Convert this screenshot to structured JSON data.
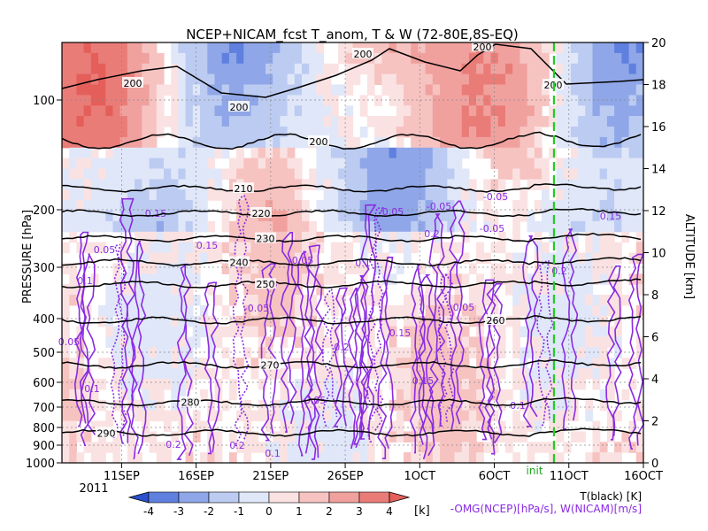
{
  "chart_data": {
    "type": "heatmap",
    "title": "NCEP+NICAM_fcst T_anom, T & W  (72-80E,8S-EQ)",
    "y_left_label": "PRESSURE [hPa]",
    "y_right_label": "ALTITUDE [km]",
    "y_left_ticks": [
      "100",
      "200",
      "300",
      "400",
      "500",
      "600",
      "700",
      "800",
      "900",
      "1000"
    ],
    "y_left_tick_values": [
      100,
      200,
      300,
      400,
      500,
      600,
      700,
      800,
      900,
      1000
    ],
    "y_right_ticks": [
      "0",
      "2",
      "4",
      "6",
      "8",
      "10",
      "12",
      "14",
      "16",
      "18",
      "20"
    ],
    "x_ticks": [
      "11SEP",
      "16SEP",
      "21SEP",
      "26SEP",
      "1OCT",
      "6OCT",
      "11OCT",
      "16OCT"
    ],
    "x_year": "2011",
    "x_range": [
      "2011-09-07",
      "2011-10-16"
    ],
    "init_label": "init",
    "init_date": "2011-10-10",
    "legend_line1": "T(black) [K]",
    "legend_line2": "-OMG(NCEP)[hPa/s], W(NICAM)[m/s]",
    "colorbar": {
      "ticks": [
        "-4",
        "-3",
        "-2",
        "-1",
        "0",
        "1",
        "2",
        "3",
        "4"
      ],
      "unit": "[k]",
      "colors": [
        "#2a4fcf",
        "#5f80df",
        "#8fa7e8",
        "#bccbf1",
        "#e0e7f9",
        "#fbe2e2",
        "#f6c3c1",
        "#f0a19e",
        "#ea7c78",
        "#e45f5a"
      ]
    },
    "temperature_contours": [
      {
        "label": "290",
        "level_hpa": 830
      },
      {
        "label": "280",
        "level_hpa": 680
      },
      {
        "label": "270",
        "level_hpa": 540
      },
      {
        "label": "260",
        "level_hpa": 405
      },
      {
        "label": "250",
        "level_hpa": 330
      },
      {
        "label": "240",
        "level_hpa": 290
      },
      {
        "label": "230",
        "level_hpa": 245
      },
      {
        "label": "220",
        "level_hpa": 205
      },
      {
        "label": "210",
        "level_hpa": 175
      },
      {
        "label": "200",
        "level_hpa": 130
      }
    ],
    "w_labels": [
      "0.05",
      "0.1",
      "0.15",
      "0.2",
      "-0.05"
    ],
    "colors": {
      "temperature": "#000000",
      "w": "#8a2be2",
      "init_line": "#22cc22"
    }
  }
}
